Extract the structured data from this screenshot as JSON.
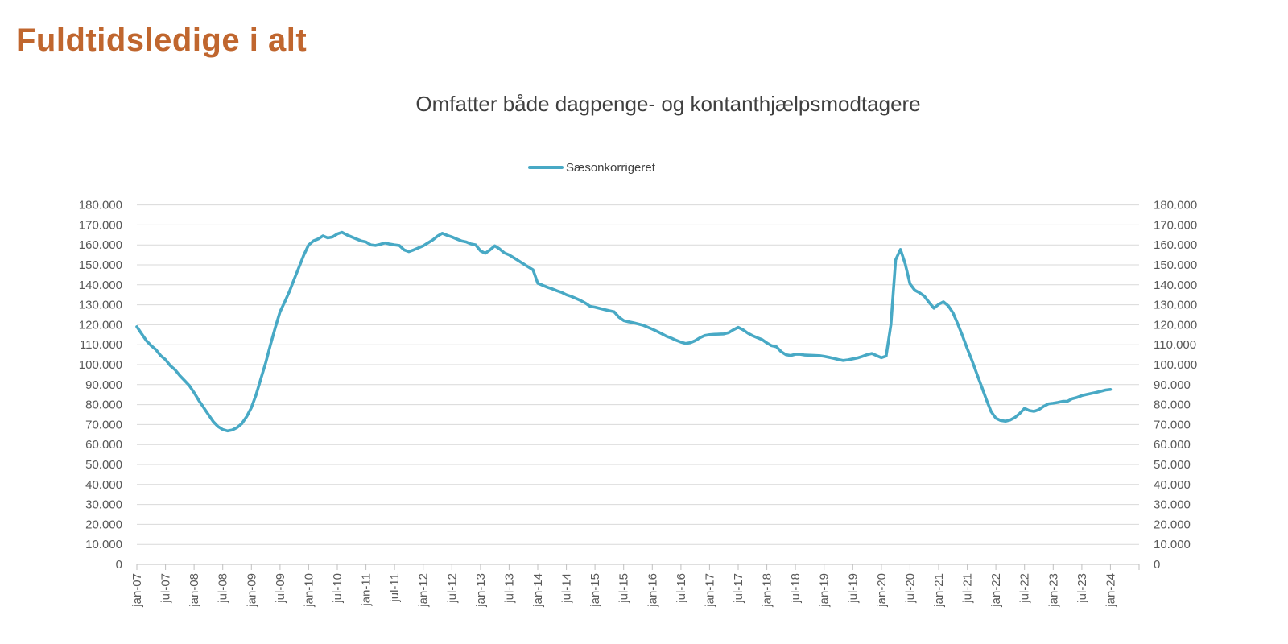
{
  "page_title": "Fuldtidsledige i alt",
  "colors": {
    "page_title": "#C0662E",
    "series_line": "#48A9C5",
    "axis_text": "#595959",
    "chart_title_text": "#404040",
    "gridline": "#D9D9D9",
    "axis_line": "#BFBFBF"
  },
  "chart": {
    "title": "Omfatter både dagpenge- og kontanthjælpsmodtagere",
    "legend": [
      {
        "label": "Sæsonkorrigeret"
      }
    ]
  },
  "chart_data": {
    "type": "line",
    "title": "Omfatter både dagpenge- og kontanthjælpsmodtagere",
    "x_start": "jan-07",
    "x_end": "jan-24",
    "x_interval": "1 month",
    "x_tick_labels": [
      "jan-07",
      "jul-07",
      "jan-08",
      "jul-08",
      "jan-09",
      "jul-09",
      "jan-10",
      "jul-10",
      "jan-11",
      "jul-11",
      "jan-12",
      "jul-12",
      "jan-13",
      "jul-13",
      "jan-14",
      "jul-14",
      "jan-15",
      "jul-15",
      "jan-16",
      "jul-16",
      "jan-17",
      "jul-17",
      "jan-18",
      "jul-18",
      "jan-19",
      "jul-19",
      "jan-20",
      "jul-20",
      "jan-21",
      "jul-21",
      "jan-22",
      "jul-22",
      "jan-23",
      "jul-23",
      "jan-24"
    ],
    "y_tick_labels": [
      "0",
      "10.000",
      "20.000",
      "30.000",
      "40.000",
      "50.000",
      "60.000",
      "70.000",
      "80.000",
      "90.000",
      "100.000",
      "110.000",
      "120.000",
      "130.000",
      "140.000",
      "150.000",
      "160.000",
      "170.000",
      "180.000"
    ],
    "ylim": [
      0,
      180000
    ],
    "y_tick_step": 10000,
    "grid": "horizontal",
    "legend_position": "top-center",
    "dual_y_axis": true,
    "series": [
      {
        "name": "Sæsonkorrigeret",
        "color": "#48A9C5",
        "values": [
          119000,
          115500,
          112000,
          109500,
          107500,
          104500,
          102500,
          99500,
          97500,
          94500,
          92000,
          89500,
          86000,
          82000,
          78500,
          75000,
          71500,
          69000,
          67500,
          66800,
          67300,
          68500,
          70500,
          74000,
          78500,
          85000,
          93000,
          101000,
          110000,
          118500,
          126500,
          131500,
          136800,
          143000,
          149000,
          155000,
          160000,
          162000,
          163000,
          164500,
          163500,
          164000,
          165500,
          166300,
          165000,
          164000,
          163000,
          162000,
          161500,
          160000,
          159700,
          160300,
          161000,
          160400,
          160000,
          159700,
          157500,
          156600,
          157500,
          158500,
          159500,
          161000,
          162500,
          164400,
          165800,
          164800,
          164000,
          163000,
          162000,
          161500,
          160500,
          160000,
          157000,
          155800,
          157500,
          159500,
          158000,
          156000,
          155000,
          153500,
          152000,
          150500,
          149000,
          147500,
          140800,
          139800,
          138800,
          138000,
          137000,
          136200,
          135000,
          134200,
          133200,
          132100,
          130800,
          129200,
          128800,
          128200,
          127600,
          127000,
          126500,
          123800,
          122100,
          121500,
          121000,
          120400,
          119800,
          118800,
          117800,
          116700,
          115500,
          114200,
          113300,
          112200,
          111300,
          110600,
          111000,
          112000,
          113500,
          114600,
          115000,
          115200,
          115300,
          115400,
          116000,
          117500,
          118700,
          117500,
          115800,
          114500,
          113500,
          112600,
          110900,
          109500,
          109000,
          106500,
          105000,
          104600,
          105200,
          105200,
          104800,
          104700,
          104600,
          104500,
          104200,
          103700,
          103200,
          102600,
          102100,
          102400,
          102900,
          103400,
          104100,
          105000,
          105600,
          104500,
          103500,
          104300,
          120000,
          152500,
          157700,
          150500,
          140500,
          137300,
          136000,
          134300,
          131200,
          128300,
          130200,
          131500,
          129500,
          126000,
          120500,
          114500,
          108000,
          102000,
          95500,
          89000,
          82500,
          76500,
          73200,
          72000,
          71700,
          72300,
          73600,
          75600,
          78100,
          77000,
          76600,
          77500,
          79100,
          80400,
          80700,
          81100,
          81600,
          81700,
          83000,
          83600,
          84500,
          85100,
          85600,
          86100,
          86700,
          87300,
          87600
        ]
      }
    ]
  }
}
